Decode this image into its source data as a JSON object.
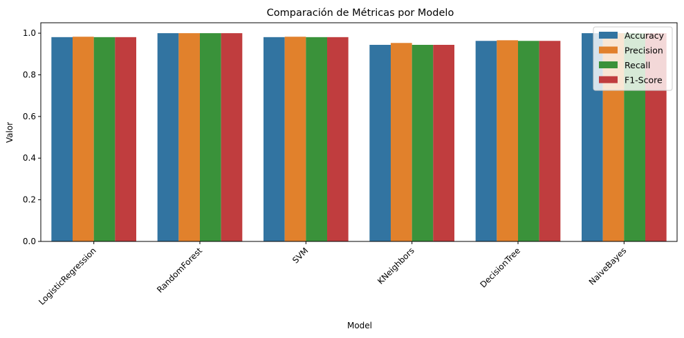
{
  "chart_data": {
    "type": "bar",
    "title": "Comparación de Métricas por Modelo",
    "xlabel": "Model",
    "ylabel": "Valor",
    "ylim": [
      0,
      1.05
    ],
    "yticks": [
      "0.0",
      "0.2",
      "0.4",
      "0.6",
      "0.8",
      "1.0"
    ],
    "categories": [
      "LogisticRegression",
      "RandomForest",
      "SVM",
      "KNeighbors",
      "DecisionTree",
      "NaiveBayes"
    ],
    "series": [
      {
        "name": "Accuracy",
        "color": "#3274a1",
        "values": [
          0.981,
          1.0,
          0.981,
          0.944,
          0.963,
          1.0
        ]
      },
      {
        "name": "Precision",
        "color": "#e1812c",
        "values": [
          0.983,
          1.0,
          0.983,
          0.953,
          0.966,
          1.0
        ]
      },
      {
        "name": "Recall",
        "color": "#3a923a",
        "values": [
          0.981,
          1.0,
          0.981,
          0.944,
          0.963,
          1.0
        ]
      },
      {
        "name": "F1-Score",
        "color": "#c03d3e",
        "values": [
          0.981,
          1.0,
          0.981,
          0.944,
          0.963,
          1.0
        ]
      }
    ],
    "grid": false,
    "legend_position": "top-right"
  }
}
